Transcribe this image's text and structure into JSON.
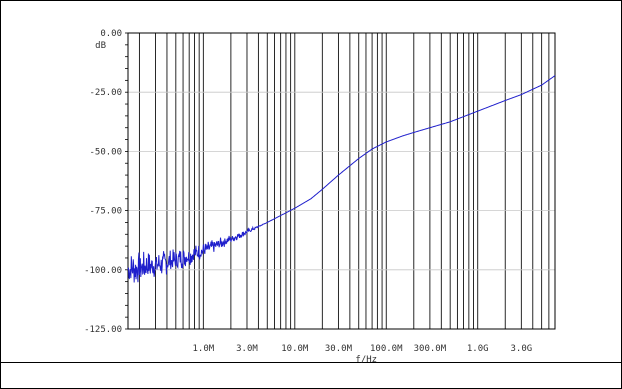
{
  "chart_data": {
    "type": "line",
    "title": "",
    "xlabel": "f/Hz",
    "ylabel": "dB",
    "x_scale": "log",
    "xlim": [
      150000,
      7000000000
    ],
    "ylim": [
      -125,
      0
    ],
    "grid": true,
    "y_ticks": [
      {
        "value": 0,
        "label": "0.00"
      },
      {
        "value": -25,
        "label": "-25.00"
      },
      {
        "value": -50,
        "label": "-50.00"
      },
      {
        "value": -75,
        "label": "-75.00"
      },
      {
        "value": -100,
        "label": "-100.00"
      },
      {
        "value": -125,
        "label": "-125.00"
      }
    ],
    "x_ticks": [
      {
        "value": 1000000,
        "label": "1.0M"
      },
      {
        "value": 3000000,
        "label": "3.0M"
      },
      {
        "value": 10000000,
        "label": "10.0M"
      },
      {
        "value": 30000000,
        "label": "30.0M"
      },
      {
        "value": 100000000,
        "label": "100.0M"
      },
      {
        "value": 300000000,
        "label": "300.0M"
      },
      {
        "value": 1000000000,
        "label": "1.0G"
      },
      {
        "value": 3000000000,
        "label": "3.0G"
      }
    ],
    "series": [
      {
        "color": "#1f1fcc",
        "x": [
          150000,
          200000,
          300000,
          500000,
          700000,
          1000000,
          1500000,
          2000000,
          3000000,
          5000000,
          10000000,
          15000000,
          20000000,
          30000000,
          50000000,
          70000000,
          100000000,
          150000000,
          200000000,
          300000000,
          500000000,
          1000000000,
          2000000000,
          3000000000,
          5000000000,
          7000000000
        ],
        "y": [
          -100,
          -99,
          -98,
          -96,
          -94,
          -92,
          -89,
          -87,
          -84,
          -80,
          -74,
          -70,
          -66,
          -60,
          -53,
          -49,
          -46,
          -43.5,
          -42,
          -40,
          -37.5,
          -33,
          -28.5,
          -26,
          -22,
          -18
        ]
      }
    ]
  }
}
